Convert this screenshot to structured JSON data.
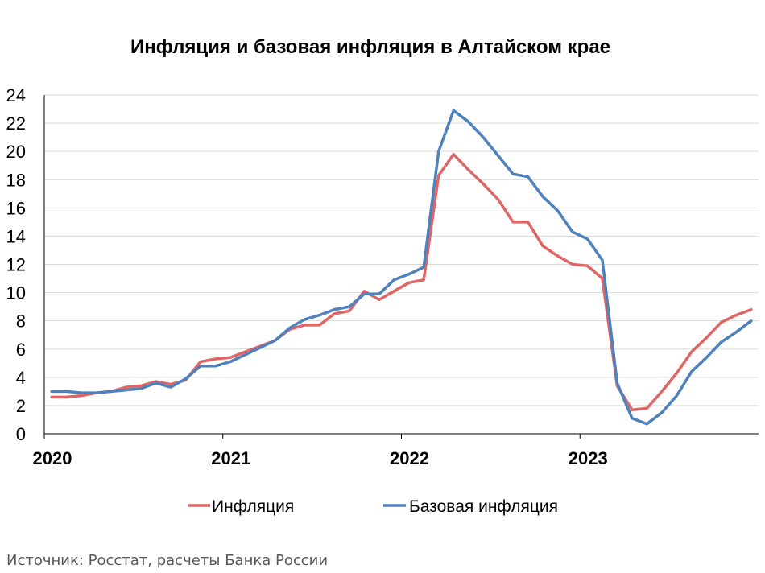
{
  "chart_data": {
    "type": "line",
    "title": "Инфляция и базовая инфляция в Алтайском крае",
    "xlabel": "",
    "ylabel": "",
    "ylim": [
      0,
      24
    ],
    "yticks": [
      "0",
      "2",
      "4",
      "6",
      "8",
      "10",
      "12",
      "14",
      "16",
      "18",
      "20",
      "22",
      "24"
    ],
    "xticks": [
      "2020",
      "2021",
      "2022",
      "2023"
    ],
    "grid": true,
    "legend": "bottom",
    "x": [
      "2020-01",
      "2020-02",
      "2020-03",
      "2020-04",
      "2020-05",
      "2020-06",
      "2020-07",
      "2020-08",
      "2020-09",
      "2020-10",
      "2020-11",
      "2020-12",
      "2021-01",
      "2021-02",
      "2021-03",
      "2021-04",
      "2021-05",
      "2021-06",
      "2021-07",
      "2021-08",
      "2021-09",
      "2021-10",
      "2021-11",
      "2021-12",
      "2022-01",
      "2022-02",
      "2022-03",
      "2022-04",
      "2022-05",
      "2022-06",
      "2022-07",
      "2022-08",
      "2022-09",
      "2022-10",
      "2022-11",
      "2022-12",
      "2023-01",
      "2023-02",
      "2023-03",
      "2023-04",
      "2023-05",
      "2023-06",
      "2023-07",
      "2023-08",
      "2023-09",
      "2023-10",
      "2023-11",
      "2023-12"
    ],
    "series": [
      {
        "name": "Инфляция",
        "color": "#E06666",
        "values": [
          2.6,
          2.6,
          2.7,
          2.9,
          3.0,
          3.3,
          3.4,
          3.7,
          3.5,
          3.8,
          5.1,
          5.3,
          5.4,
          5.8,
          6.2,
          6.6,
          7.4,
          7.7,
          7.7,
          8.5,
          8.7,
          10.1,
          9.5,
          10.1,
          10.7,
          10.9,
          18.3,
          19.8,
          18.7,
          17.7,
          16.6,
          15.0,
          15.0,
          13.3,
          12.6,
          12.0,
          11.9,
          11.0,
          3.4,
          1.7,
          1.8,
          3.0,
          4.3,
          5.8,
          6.8,
          7.9,
          8.4,
          8.8
        ]
      },
      {
        "name": "Базовая инфляция",
        "color": "#4F81BD",
        "values": [
          3.0,
          3.0,
          2.9,
          2.9,
          3.0,
          3.1,
          3.2,
          3.6,
          3.3,
          3.9,
          4.8,
          4.8,
          5.1,
          5.6,
          6.1,
          6.6,
          7.5,
          8.1,
          8.4,
          8.8,
          9.0,
          9.9,
          9.9,
          10.9,
          11.3,
          11.8,
          20.0,
          22.9,
          22.1,
          21.0,
          19.7,
          18.4,
          18.2,
          16.8,
          15.8,
          14.3,
          13.8,
          12.3,
          3.6,
          1.1,
          0.7,
          1.5,
          2.7,
          4.4,
          5.4,
          6.5,
          7.2,
          8.0
        ]
      }
    ]
  },
  "source": "Источник: Росстат, расчеты Банка России"
}
